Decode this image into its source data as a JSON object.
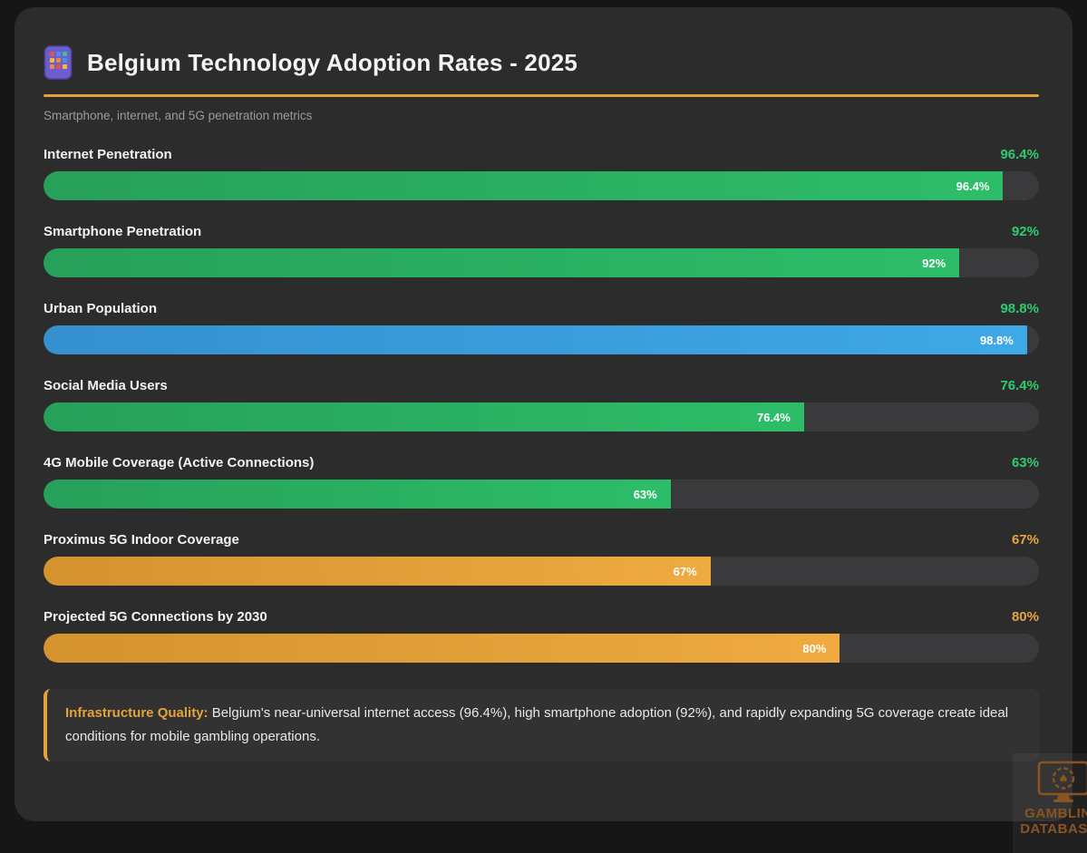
{
  "header": {
    "icon": "mobile-phone-icon",
    "title": "Belgium Technology Adoption Rates - 2025",
    "subtitle": "Smartphone, internet, and 5G penetration metrics"
  },
  "chart_data": {
    "type": "bar",
    "orientation": "horizontal",
    "title": "Belgium Technology Adoption Rates - 2025",
    "xlim": [
      0,
      100
    ],
    "grid": false,
    "categories": [
      "Internet Penetration",
      "Smartphone Penetration",
      "Urban Population",
      "Social Media Users",
      "4G Mobile Coverage (Active Connections)",
      "Proximus 5G Indoor Coverage",
      "Projected 5G Connections by 2030"
    ],
    "values": [
      96.4,
      92,
      98.8,
      76.4,
      63,
      67,
      80
    ],
    "value_labels": [
      "96.4%",
      "92%",
      "98.8%",
      "76.4%",
      "63%",
      "67%",
      "80%"
    ],
    "bar_colors": [
      "green",
      "green",
      "blue",
      "green",
      "green",
      "orange",
      "orange"
    ],
    "value_label_colors": [
      "green",
      "green",
      "green",
      "green",
      "green",
      "orange",
      "orange"
    ]
  },
  "colors": {
    "accent": "#e3a23c",
    "green_value": "#2ecc71",
    "orange_value": "#e8a33d",
    "green_bar_start": "#27a05a",
    "green_bar_end": "#2dbd68",
    "blue_bar_start": "#3590cf",
    "blue_bar_end": "#3fa9e6",
    "orange_bar_start": "#d4932f",
    "orange_bar_end": "#efaa41",
    "track": "#3a3a3c",
    "card_background": "#2c2c2c"
  },
  "note": {
    "label": "Infrastructure Quality:",
    "text": " Belgium's near-universal internet access (96.4%), high smartphone adoption (92%), and rapidly expanding 5G coverage create ideal conditions for mobile gambling operations."
  },
  "watermark": {
    "line1": "GAMBLING",
    "line2": "DATABASES"
  }
}
